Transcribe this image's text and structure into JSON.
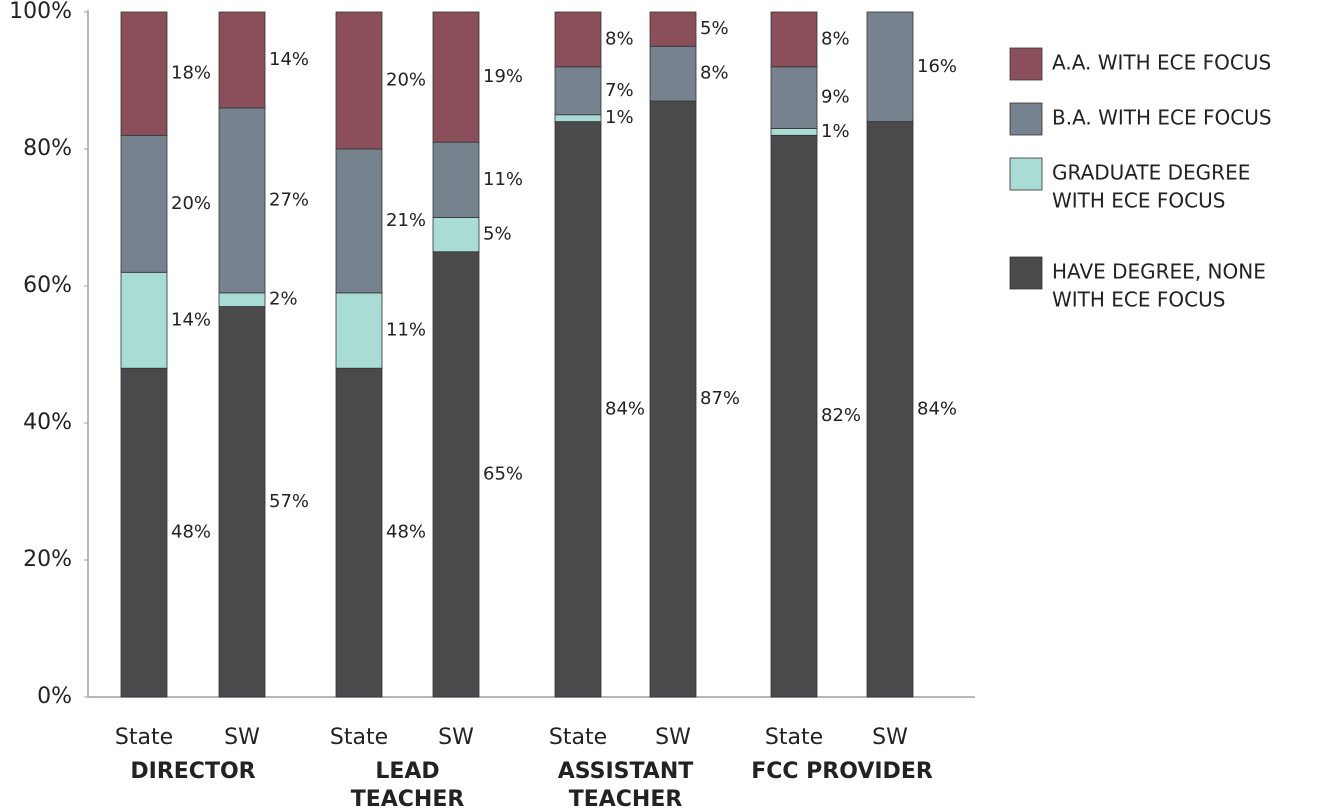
{
  "chart_data": {
    "type": "stacked_bar",
    "categories": [
      "State",
      "SW",
      "State",
      "SW",
      "State",
      "SW",
      "State",
      "SW"
    ],
    "groups": [
      {
        "label": [
          "DIRECTOR"
        ]
      },
      {
        "label": [
          "LEAD",
          "TEACHER"
        ]
      },
      {
        "label": [
          "ASSISTANT",
          "TEACHER"
        ]
      },
      {
        "label": [
          "FCC PROVIDER"
        ]
      }
    ],
    "series": [
      {
        "name": [
          "HAVE DEGREE, NONE",
          "WITH ECE FOCUS"
        ],
        "color": "#4a4a4c",
        "values": [
          48,
          57,
          48,
          65,
          84,
          87,
          82,
          84
        ],
        "value_labels": [
          "48%",
          "57%",
          "48%",
          "65%",
          "84%",
          "87%",
          "82%",
          "84%"
        ]
      },
      {
        "name": [
          "GRADUATE DEGREE",
          "WITH ECE FOCUS"
        ],
        "color": "#a8dcd5",
        "values": [
          14,
          2,
          11,
          5,
          1,
          null,
          1,
          null
        ],
        "value_labels": [
          "14%",
          "2%",
          "11%",
          "5%",
          "1%",
          null,
          "1%",
          null
        ]
      },
      {
        "name": [
          "B.A. WITH ECE FOCUS"
        ],
        "color": "#77828f",
        "values": [
          20,
          27,
          21,
          11,
          7,
          8,
          9,
          16
        ],
        "value_labels": [
          "20%",
          "27%",
          "21%",
          "11%",
          "7%",
          "8%",
          "9%",
          "16%"
        ]
      },
      {
        "name": [
          "A.A. WITH ECE FOCUS"
        ],
        "color": "#8b4f5c",
        "values": [
          18,
          14,
          20,
          19,
          8,
          5,
          8,
          null
        ],
        "value_labels": [
          "18%",
          "14%",
          "20%",
          "19%",
          "8%",
          "5%",
          "8%",
          null
        ]
      }
    ],
    "ylim": [
      0,
      100
    ],
    "yticks": [
      {
        "value": 0,
        "label": "0%"
      },
      {
        "value": 20,
        "label": "20%"
      },
      {
        "value": 40,
        "label": "40%"
      },
      {
        "value": 60,
        "label": "60%"
      },
      {
        "value": 80,
        "label": "80%"
      },
      {
        "value": 100,
        "label": "100%"
      }
    ]
  }
}
